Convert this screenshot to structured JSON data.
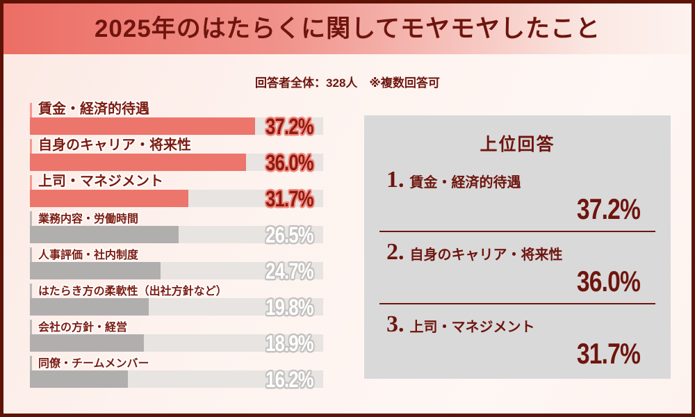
{
  "header": {
    "title": "2025年のはたらくに関してモヤモヤしたこと"
  },
  "subtitle": "回答者全体：328人　※複数回答可",
  "chart_data": {
    "type": "bar",
    "orientation": "horizontal",
    "title": "2025年のはたらくに関してモヤモヤしたこと",
    "respondents_note": "回答者全体：328人　※複数回答可",
    "categories": [
      "賃金・経済的待遇",
      "自身のキャリア・将来性",
      "上司・マネジメント",
      "業務内容・労働時間",
      "人事評価・社内制度",
      "はたらき方の柔軟性（出社方針など）",
      "会社の方針・経営",
      "同僚・チームメンバー"
    ],
    "values": [
      37.2,
      36.0,
      31.7,
      26.5,
      24.7,
      19.8,
      18.9,
      16.2
    ],
    "value_labels": [
      "37.2%",
      "36.0%",
      "31.7%",
      "26.5%",
      "24.7%",
      "19.8%",
      "18.9%",
      "16.2%"
    ],
    "unit": "%",
    "highlighted_top_n": 3,
    "grid": false,
    "legend": false,
    "xlim": [
      0,
      48.5
    ],
    "bar_fill_fractions": [
      0.767,
      0.738,
      0.54,
      0.507,
      0.445,
      0.405,
      0.388,
      0.333
    ]
  },
  "top_answers": {
    "title": "上位回答",
    "items": [
      {
        "rank_label": "1.",
        "label": "賃金・経済的待遇",
        "value": "37.2%"
      },
      {
        "rank_label": "2.",
        "label": "自身のキャリア・将来性",
        "value": "36.0%"
      },
      {
        "rank_label": "3.",
        "label": "上司・マネジメント",
        "value": "31.7%"
      }
    ]
  },
  "colors": {
    "border": "#5e1306",
    "dark_red_text": "#6e150e",
    "label_red": "#7c1b10",
    "highlight_bar": "#ec756c",
    "highlight_pct_fill": "#8c1b10",
    "highlight_pct_outline": "#f3887e",
    "gray_bar": "#b1aeae",
    "gray_pct_outline": "#c4c1bf",
    "bar_track": "#e7e4e1",
    "panel_bg": "#d9d9d9",
    "page_bg": "#fdf2ee",
    "header_gradient_start": "#ec6e65",
    "header_gradient_end": "#fdf2ef"
  }
}
